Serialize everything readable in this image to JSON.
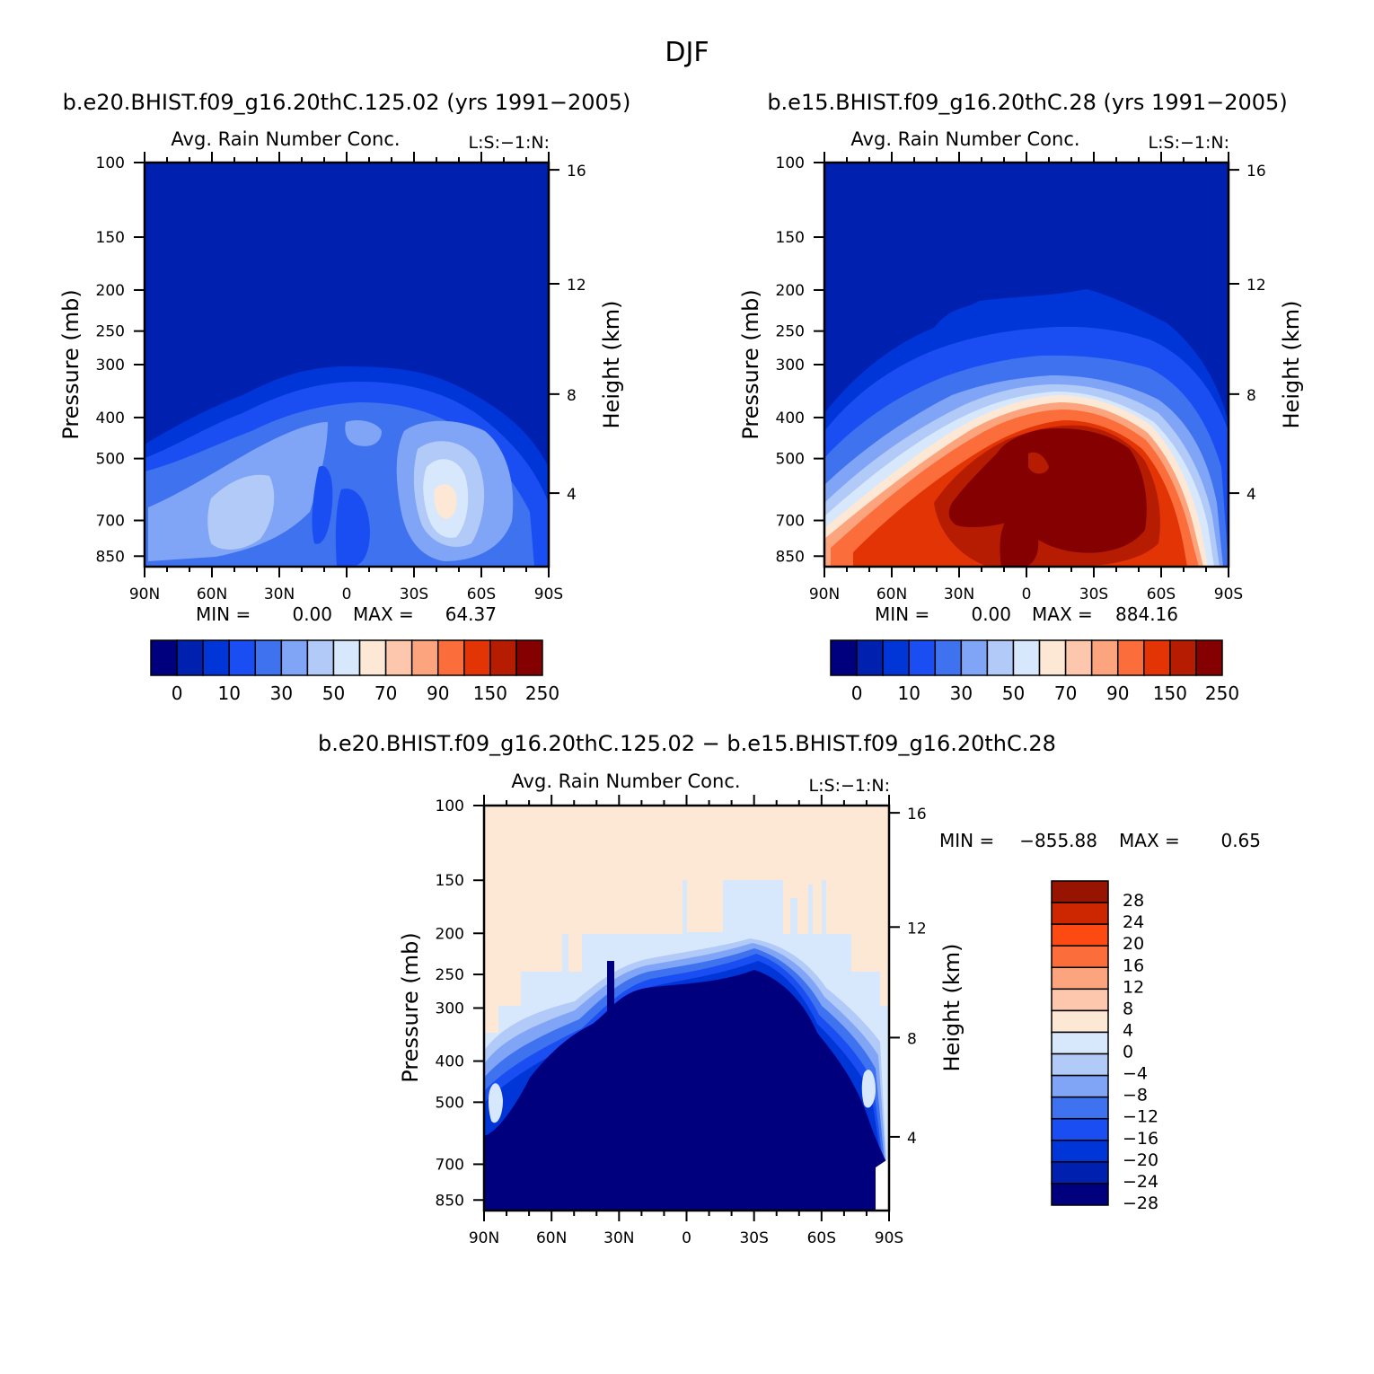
{
  "page": {
    "title": "DJF"
  },
  "colors": {
    "ctl_palette": [
      "#00007f",
      "#0020b0",
      "#0035d8",
      "#1a4ef2",
      "#3f72ee",
      "#80a4f6",
      "#b2caf8",
      "#d8e8fc",
      "#fde7d5",
      "#fcc7ac",
      "#fca47e",
      "#fc6d3c",
      "#e23405",
      "#b51c02",
      "#850000"
    ],
    "diff_palette": [
      "#00007f",
      "#0020b0",
      "#0035d8",
      "#1a4ef2",
      "#3f72ee",
      "#80a4f6",
      "#b2caf8",
      "#d8e8fc",
      "#fde7d5",
      "#fcc7ac",
      "#fca47e",
      "#fc6d3c",
      "#fc4a12",
      "#cc2700",
      "#961400"
    ]
  },
  "chart_data": [
    {
      "type": "contour",
      "panel_title": "b.e20.BHIST.f09_g16.20thC.125.02 (yrs 1991−2005)",
      "title": "Avg. Rain Number Conc.",
      "title_right": "L:S:−1:N:",
      "ylabel": "Pressure (mb)",
      "ylabel_right": "Height (km)",
      "x_ticks": [
        "90N",
        "60N",
        "30N",
        "0",
        "30S",
        "60S",
        "90S"
      ],
      "y_ticks": [
        "100",
        "150",
        "200",
        "250",
        "300",
        "400",
        "500",
        "700",
        "850"
      ],
      "y_ticks_right": [
        "16",
        "12",
        "8",
        "4"
      ],
      "min_label": "MIN =",
      "min_value": "0.00",
      "max_label": "MAX =",
      "max_value": "64.37",
      "colorbar_labels": [
        "0",
        "10",
        "30",
        "50",
        "70",
        "90",
        "150",
        "250"
      ],
      "ylim": [
        1000,
        100
      ]
    },
    {
      "type": "contour",
      "panel_title": "b.e15.BHIST.f09_g16.20thC.28 (yrs 1991−2005)",
      "title": "Avg. Rain Number Conc.",
      "title_right": "L:S:−1:N:",
      "ylabel": "Pressure (mb)",
      "ylabel_right": "Height (km)",
      "x_ticks": [
        "90N",
        "60N",
        "30N",
        "0",
        "30S",
        "60S",
        "90S"
      ],
      "y_ticks": [
        "100",
        "150",
        "200",
        "250",
        "300",
        "400",
        "500",
        "700",
        "850"
      ],
      "y_ticks_right": [
        "16",
        "12",
        "8",
        "4"
      ],
      "min_label": "MIN =",
      "min_value": "0.00",
      "max_label": "MAX =",
      "max_value": "884.16",
      "colorbar_labels": [
        "0",
        "10",
        "30",
        "50",
        "70",
        "90",
        "150",
        "250"
      ],
      "ylim": [
        1000,
        100
      ]
    },
    {
      "type": "contour",
      "panel_title": "b.e20.BHIST.f09_g16.20thC.125.02 − b.e15.BHIST.f09_g16.20thC.28",
      "title": "Avg. Rain Number Conc.",
      "title_right": "L:S:−1:N:",
      "ylabel": "Pressure (mb)",
      "ylabel_right": "Height (km)",
      "x_ticks": [
        "90N",
        "60N",
        "30N",
        "0",
        "30S",
        "60S",
        "90S"
      ],
      "y_ticks": [
        "100",
        "150",
        "200",
        "250",
        "300",
        "400",
        "500",
        "700",
        "850"
      ],
      "y_ticks_right": [
        "16",
        "12",
        "8",
        "4"
      ],
      "min_label": "MIN =",
      "min_value": "−855.88",
      "max_label": "MAX =",
      "max_value": "0.65",
      "colorbar_labels": [
        "28",
        "24",
        "20",
        "16",
        "12",
        "8",
        "4",
        "0",
        "−4",
        "−8",
        "−12",
        "−16",
        "−20",
        "−24",
        "−28"
      ],
      "ylim": [
        1000,
        100
      ]
    }
  ]
}
